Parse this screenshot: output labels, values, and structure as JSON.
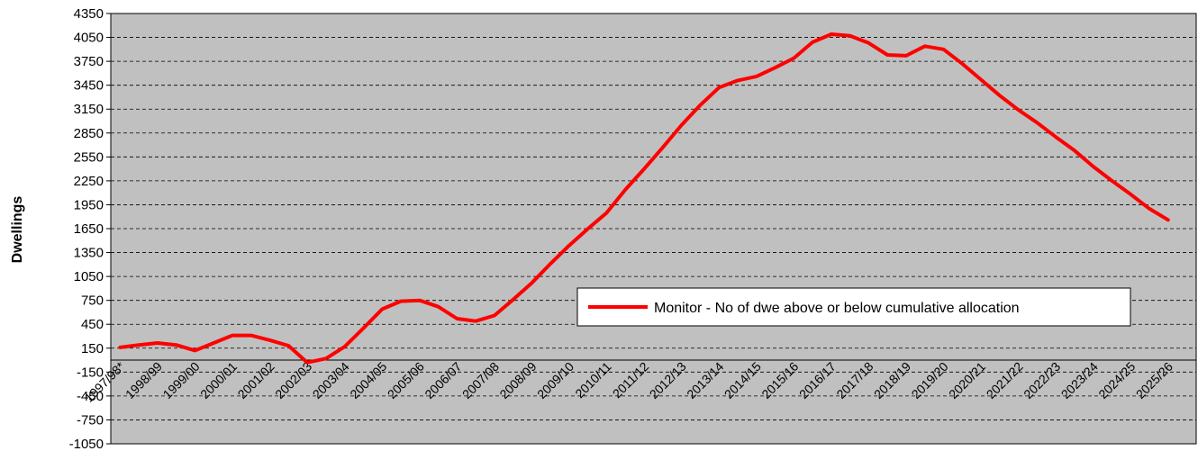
{
  "chart_data": {
    "type": "line",
    "y_label": "Dwellings",
    "categories": [
      "1997/98*",
      null,
      "1998/99",
      null,
      "1999/00",
      null,
      "2000/01",
      null,
      "2001/02",
      null,
      "2002/03",
      null,
      "2003/04",
      null,
      "2004/05",
      null,
      "2005/06",
      null,
      "2006/07",
      null,
      "2007/08",
      null,
      "2008/09",
      null,
      "2009/10",
      null,
      "2010/11",
      null,
      "2011/12",
      null,
      "2012/13",
      null,
      "2013/14",
      null,
      "2014/15",
      null,
      "2015/16",
      null,
      "2016/17",
      null,
      "2017/18",
      null,
      "2018/19",
      null,
      "2019/20",
      null,
      "2020/21",
      null,
      "2021/22",
      null,
      "2022/23",
      null,
      "2023/24",
      null,
      "2024/25",
      null,
      "2025/26",
      null
    ],
    "series": [
      {
        "name": "Monitor - No of dwe above or below cumulative allocation",
        "color": "#ff0000",
        "values": [
          160,
          190,
          215,
          190,
          120,
          215,
          310,
          310,
          250,
          180,
          -30,
          20,
          170,
          400,
          640,
          740,
          750,
          670,
          520,
          490,
          560,
          760,
          970,
          1210,
          1440,
          1650,
          1850,
          2140,
          2400,
          2670,
          2950,
          3200,
          3420,
          3510,
          3560,
          3670,
          3790,
          3990,
          4090,
          4070,
          3980,
          3830,
          3820,
          3940,
          3900,
          3720,
          3520,
          3320,
          3140,
          2980,
          2800,
          2630,
          2430,
          2250,
          2080,
          1900,
          1760,
          null
        ]
      }
    ],
    "ylim": [
      -1050,
      4350
    ],
    "yticks": [
      -1050,
      -750,
      -450,
      -150,
      150,
      450,
      750,
      1050,
      1350,
      1650,
      1950,
      2250,
      2550,
      2850,
      3150,
      3450,
      3750,
      4050,
      4350
    ],
    "grid": true,
    "background": "#c0c0c0"
  }
}
